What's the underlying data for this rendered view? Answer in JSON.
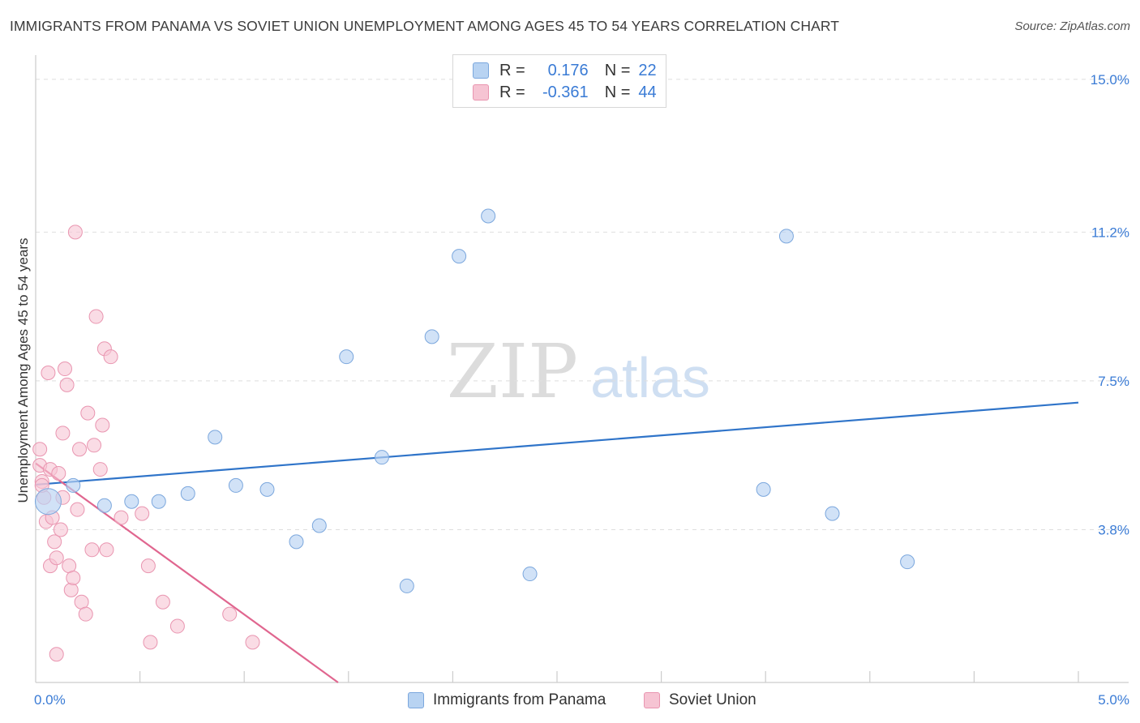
{
  "title": "IMMIGRANTS FROM PANAMA VS SOVIET UNION UNEMPLOYMENT AMONG AGES 45 TO 54 YEARS CORRELATION CHART",
  "source": "Source: ZipAtlas.com",
  "watermark": {
    "zip": "ZIP",
    "atlas": "atlas"
  },
  "legend": {
    "r_label": "R =",
    "n_label": "N =",
    "series": [
      {
        "name": "Immigrants from Panama",
        "r": "0.176",
        "n": "22"
      },
      {
        "name": "Soviet Union",
        "r": "-0.361",
        "n": "44"
      }
    ]
  },
  "colors": {
    "panama_fill": "#b8d3f2",
    "panama_stroke": "#7ba7dd",
    "panama_line": "#2f74c9",
    "soviet_fill": "#f6c4d3",
    "soviet_stroke": "#e995b0",
    "soviet_line": "#e0668f",
    "tick_label": "#3a7bd5",
    "grid": "#dedede",
    "axis": "#cccccc"
  },
  "chart_data": {
    "type": "scatter",
    "title": "IMMIGRANTS FROM PANAMA VS SOVIET UNION UNEMPLOYMENT AMONG AGES 45 TO 54 YEARS CORRELATION CHART",
    "xlabel": "",
    "ylabel": "Unemployment Among Ages 45 to 54 years",
    "xlim": [
      0,
      5.0
    ],
    "ylim": [
      0,
      15.4
    ],
    "x_tick_labels": [
      "0.0%",
      "5.0%"
    ],
    "x_tick_values": [
      0,
      5.0
    ],
    "x_minor_ticks": [
      0.5,
      1.0,
      1.5,
      2.0,
      2.5,
      3.0,
      3.5,
      4.0,
      4.5
    ],
    "y_ticks": [
      {
        "value": 3.8,
        "label": "3.8%"
      },
      {
        "value": 7.5,
        "label": "7.5%"
      },
      {
        "value": 11.2,
        "label": "11.2%"
      },
      {
        "value": 15.0,
        "label": "15.0%"
      }
    ],
    "series": [
      {
        "name": "Immigrants from Panama",
        "points": [
          {
            "x": 0.06,
            "y": 4.5,
            "size": "large"
          },
          {
            "x": 0.18,
            "y": 4.9
          },
          {
            "x": 0.33,
            "y": 4.4
          },
          {
            "x": 0.46,
            "y": 4.5
          },
          {
            "x": 0.59,
            "y": 4.5
          },
          {
            "x": 0.73,
            "y": 4.7
          },
          {
            "x": 0.86,
            "y": 6.1
          },
          {
            "x": 0.96,
            "y": 4.9
          },
          {
            "x": 1.11,
            "y": 4.8
          },
          {
            "x": 1.25,
            "y": 3.5
          },
          {
            "x": 1.36,
            "y": 3.9
          },
          {
            "x": 1.49,
            "y": 8.1
          },
          {
            "x": 1.66,
            "y": 5.6
          },
          {
            "x": 1.78,
            "y": 2.4
          },
          {
            "x": 1.9,
            "y": 8.6
          },
          {
            "x": 2.03,
            "y": 10.6
          },
          {
            "x": 2.17,
            "y": 11.6
          },
          {
            "x": 2.37,
            "y": 2.7
          },
          {
            "x": 3.49,
            "y": 4.8
          },
          {
            "x": 3.6,
            "y": 11.1
          },
          {
            "x": 3.82,
            "y": 4.2
          },
          {
            "x": 4.18,
            "y": 3.0
          }
        ],
        "trend": {
          "x": [
            0.0,
            5.0
          ],
          "y": [
            4.92,
            6.96
          ]
        }
      },
      {
        "name": "Soviet Union",
        "points": [
          {
            "x": 0.02,
            "y": 5.8
          },
          {
            "x": 0.02,
            "y": 5.4
          },
          {
            "x": 0.03,
            "y": 5.0
          },
          {
            "x": 0.04,
            "y": 4.6
          },
          {
            "x": 0.05,
            "y": 4.0
          },
          {
            "x": 0.06,
            "y": 7.7
          },
          {
            "x": 0.07,
            "y": 5.3
          },
          {
            "x": 0.07,
            "y": 2.9
          },
          {
            "x": 0.08,
            "y": 4.1
          },
          {
            "x": 0.09,
            "y": 3.5
          },
          {
            "x": 0.1,
            "y": 0.7
          },
          {
            "x": 0.1,
            "y": 3.1
          },
          {
            "x": 0.11,
            "y": 5.2
          },
          {
            "x": 0.12,
            "y": 3.8
          },
          {
            "x": 0.13,
            "y": 4.6
          },
          {
            "x": 0.13,
            "y": 6.2
          },
          {
            "x": 0.14,
            "y": 7.8
          },
          {
            "x": 0.15,
            "y": 7.4
          },
          {
            "x": 0.16,
            "y": 2.9
          },
          {
            "x": 0.17,
            "y": 2.3
          },
          {
            "x": 0.18,
            "y": 2.6
          },
          {
            "x": 0.19,
            "y": 11.2
          },
          {
            "x": 0.2,
            "y": 4.3
          },
          {
            "x": 0.21,
            "y": 5.8
          },
          {
            "x": 0.22,
            "y": 2.0
          },
          {
            "x": 0.24,
            "y": 1.7
          },
          {
            "x": 0.25,
            "y": 6.7
          },
          {
            "x": 0.27,
            "y": 3.3
          },
          {
            "x": 0.28,
            "y": 5.9
          },
          {
            "x": 0.29,
            "y": 9.1
          },
          {
            "x": 0.31,
            "y": 5.3
          },
          {
            "x": 0.32,
            "y": 6.4
          },
          {
            "x": 0.33,
            "y": 8.3
          },
          {
            "x": 0.34,
            "y": 3.3
          },
          {
            "x": 0.36,
            "y": 8.1
          },
          {
            "x": 0.41,
            "y": 4.1
          },
          {
            "x": 0.51,
            "y": 4.2
          },
          {
            "x": 0.54,
            "y": 2.9
          },
          {
            "x": 0.55,
            "y": 1.0
          },
          {
            "x": 0.61,
            "y": 2.0
          },
          {
            "x": 0.68,
            "y": 1.4
          },
          {
            "x": 0.93,
            "y": 1.7
          },
          {
            "x": 1.04,
            "y": 1.0
          },
          {
            "x": 0.03,
            "y": 4.9
          }
        ],
        "trend": {
          "x": [
            0.0,
            1.45
          ],
          "y": [
            5.45,
            0.0
          ]
        }
      }
    ]
  }
}
